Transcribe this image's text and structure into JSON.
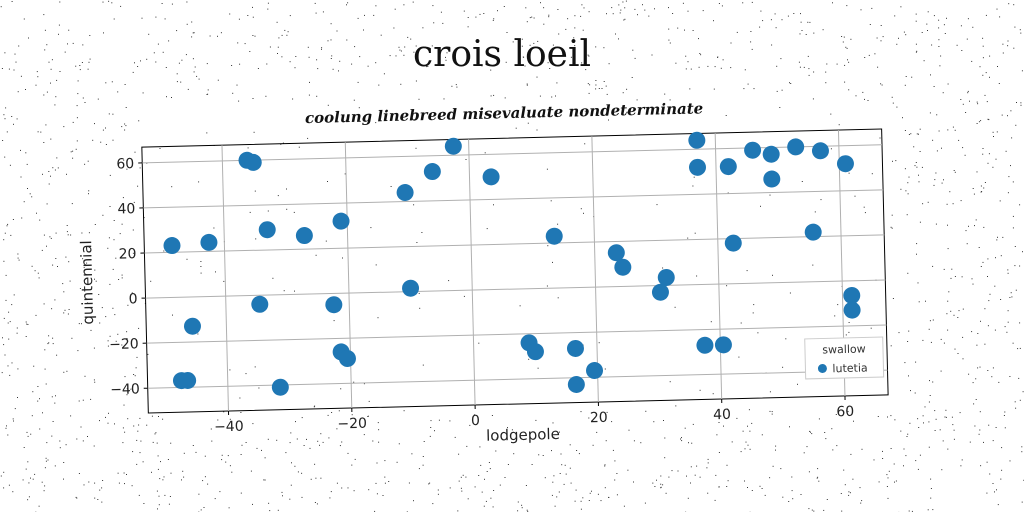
{
  "title": "crois loeil",
  "chart_data": {
    "type": "scatter",
    "title": "coolung linebreed misevaluate nondeterminate",
    "xlabel": "lodgepole",
    "ylabel": "quintennial",
    "xlim": [
      -53,
      67
    ],
    "ylim": [
      -51,
      67
    ],
    "xticks": [
      -40,
      -20,
      0,
      20,
      40,
      60
    ],
    "yticks": [
      -40,
      -20,
      0,
      20,
      40,
      60
    ],
    "grid": true,
    "legend": {
      "title": "swallow",
      "position": "bottom-right"
    },
    "series": [
      {
        "name": "lutetia",
        "color": "#1f77b4",
        "points": [
          {
            "x": -36,
            "y": 60
          },
          {
            "x": -35,
            "y": 59
          },
          {
            "x": -2.5,
            "y": 64
          },
          {
            "x": -6,
            "y": 53
          },
          {
            "x": 3.5,
            "y": 50
          },
          {
            "x": -10.5,
            "y": 44
          },
          {
            "x": -21,
            "y": 32
          },
          {
            "x": -33,
            "y": 29
          },
          {
            "x": -27,
            "y": 26
          },
          {
            "x": -42.5,
            "y": 24
          },
          {
            "x": -48.5,
            "y": 23
          },
          {
            "x": -10,
            "y": 1.5
          },
          {
            "x": -34.5,
            "y": -4
          },
          {
            "x": -22.5,
            "y": -5
          },
          {
            "x": -45.5,
            "y": -13
          },
          {
            "x": -21.5,
            "y": -26
          },
          {
            "x": -20.5,
            "y": -29
          },
          {
            "x": -47.5,
            "y": -37
          },
          {
            "x": -46.5,
            "y": -37
          },
          {
            "x": -31.5,
            "y": -41
          },
          {
            "x": 9,
            "y": -24
          },
          {
            "x": 10,
            "y": -28
          },
          {
            "x": 16.5,
            "y": -27
          },
          {
            "x": 16.5,
            "y": -43
          },
          {
            "x": 19.5,
            "y": -37
          },
          {
            "x": 13.5,
            "y": 23
          },
          {
            "x": 23.5,
            "y": 15
          },
          {
            "x": 24.5,
            "y": 8.5
          },
          {
            "x": 31.5,
            "y": 3.5
          },
          {
            "x": 30.5,
            "y": -3
          },
          {
            "x": 37,
            "y": 64
          },
          {
            "x": 37,
            "y": 52
          },
          {
            "x": 42,
            "y": 52
          },
          {
            "x": 46,
            "y": 59
          },
          {
            "x": 49,
            "y": 57
          },
          {
            "x": 49,
            "y": 46
          },
          {
            "x": 53,
            "y": 60
          },
          {
            "x": 57,
            "y": 58
          },
          {
            "x": 61,
            "y": 52
          },
          {
            "x": 55.5,
            "y": 22
          },
          {
            "x": 42.5,
            "y": 18
          },
          {
            "x": 61.5,
            "y": -6.5
          },
          {
            "x": 61.5,
            "y": -13
          },
          {
            "x": 37.5,
            "y": -27
          },
          {
            "x": 40.5,
            "y": -27
          }
        ]
      }
    ]
  }
}
